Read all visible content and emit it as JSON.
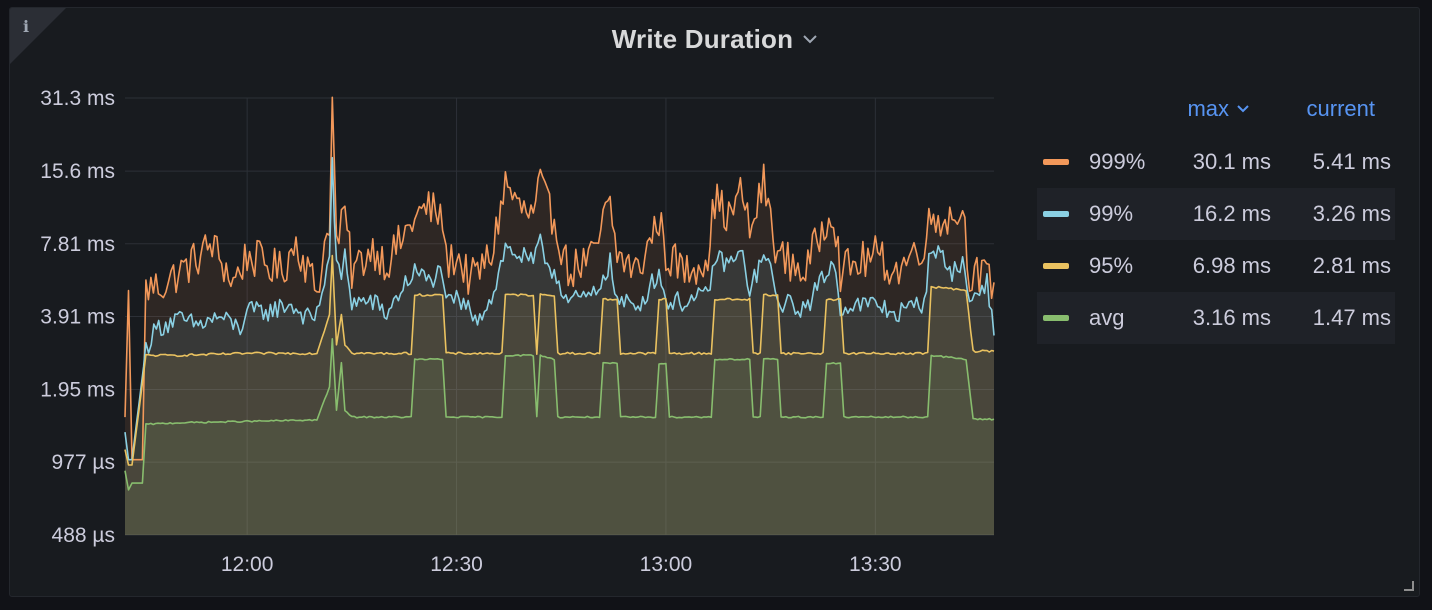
{
  "panel": {
    "title": "Write Duration",
    "info_icon": "i"
  },
  "legend": {
    "headers": {
      "max": "max",
      "current": "current"
    },
    "series": [
      {
        "name": "999%",
        "color": "#f2985a",
        "max": "30.1 ms",
        "current": "5.41 ms"
      },
      {
        "name": "99%",
        "color": "#8ad0e3",
        "max": "16.2 ms",
        "current": "3.26 ms"
      },
      {
        "name": "95%",
        "color": "#eac260",
        "max": "6.98 ms",
        "current": "2.81 ms"
      },
      {
        "name": "avg",
        "color": "#88bd6e",
        "max": "3.16 ms",
        "current": "1.47 ms"
      }
    ]
  },
  "chart_data": {
    "type": "area",
    "scale": "log2",
    "grid": true,
    "legend_position": "right",
    "y_ticks_ms": [
      31.3,
      15.6,
      7.81,
      3.91,
      1.95,
      0.977,
      0.488
    ],
    "y_tick_labels": [
      "31.3 ms",
      "15.6 ms",
      "7.81 ms",
      "3.91 ms",
      "1.95 ms",
      "977 µs",
      "488 µs"
    ],
    "ylim_ms": [
      0.488,
      31.3
    ],
    "x_ticks": [
      "12:00",
      "12:30",
      "13:00",
      "13:30"
    ],
    "x_tick_minutes": [
      0,
      30,
      60,
      90
    ],
    "xlim_minutes": [
      -17.5,
      107
    ],
    "bursts": [
      {
        "start": 13,
        "end": 15
      },
      {
        "start": 24,
        "end": 28
      },
      {
        "start": 37,
        "end": 41
      },
      {
        "start": 42,
        "end": 44
      },
      {
        "start": 51,
        "end": 53
      },
      {
        "start": 59,
        "end": 60
      },
      {
        "start": 67,
        "end": 72
      },
      {
        "start": 74,
        "end": 76
      },
      {
        "start": 83,
        "end": 85
      },
      {
        "start": 98,
        "end": 103
      }
    ],
    "series": [
      {
        "name": "999%",
        "values": [
          [
            -17.5,
            1.5
          ],
          [
            -17,
            5.0
          ],
          [
            -16.5,
            1.0
          ],
          [
            -15,
            1.0
          ],
          [
            -14.5,
            5.1
          ],
          [
            -12,
            5.3
          ],
          [
            -8,
            6.5
          ],
          [
            -5,
            7.8
          ],
          [
            -2,
            5.4
          ],
          [
            0,
            7.0
          ],
          [
            5,
            6.0
          ],
          [
            7,
            8.0
          ],
          [
            10,
            5.0
          ],
          [
            11.8,
            10
          ],
          [
            12.2,
            30.1
          ],
          [
            12.8,
            8.0
          ],
          [
            13.5,
            9.0
          ],
          [
            14,
            10.5
          ],
          [
            15,
            6.0
          ],
          [
            18,
            7.5
          ],
          [
            20,
            6.5
          ],
          [
            22,
            8.0
          ],
          [
            24,
            10.0
          ],
          [
            26,
            11.0
          ],
          [
            28,
            10.0
          ],
          [
            28.5,
            6.5
          ],
          [
            30,
            7.0
          ],
          [
            32,
            5.5
          ],
          [
            35,
            7.0
          ],
          [
            37,
            14.0
          ],
          [
            39,
            11.0
          ],
          [
            41,
            10.0
          ],
          [
            42,
            14.0
          ],
          [
            43,
            11.0
          ],
          [
            44,
            10.0
          ],
          [
            46,
            6.0
          ],
          [
            50,
            7.0
          ],
          [
            51,
            10.0
          ],
          [
            52,
            11.0
          ],
          [
            53,
            7.0
          ],
          [
            56,
            6.0
          ],
          [
            59,
            10.0
          ],
          [
            60,
            7.0
          ],
          [
            63,
            6.0
          ],
          [
            66,
            7.0
          ],
          [
            67,
            12.0
          ],
          [
            69,
            10.0
          ],
          [
            71,
            13.0
          ],
          [
            72,
            8.5
          ],
          [
            74,
            14.0
          ],
          [
            75,
            10.0
          ],
          [
            76,
            7.0
          ],
          [
            80,
            6.0
          ],
          [
            83,
            10.0
          ],
          [
            84,
            11.0
          ],
          [
            85,
            6.0
          ],
          [
            90,
            7.0
          ],
          [
            93,
            6.0
          ],
          [
            97,
            8.0
          ],
          [
            98,
            10.0
          ],
          [
            101,
            10.0
          ],
          [
            102.5,
            11.0
          ],
          [
            103.5,
            6.0
          ],
          [
            107,
            5.41
          ]
        ]
      },
      {
        "name": "99%",
        "values": [
          [
            -17.5,
            1.3
          ],
          [
            -17,
            1.0
          ],
          [
            -16.5,
            1.0
          ],
          [
            -14.5,
            2.9
          ],
          [
            -13,
            3.5
          ],
          [
            -10,
            3.8
          ],
          [
            -7,
            3.6
          ],
          [
            -4,
            3.9
          ],
          [
            -1,
            3.5
          ],
          [
            0,
            4.1
          ],
          [
            3,
            4.1
          ],
          [
            6,
            4.4
          ],
          [
            9,
            3.8
          ],
          [
            10,
            4.0
          ],
          [
            11.8,
            7.0
          ],
          [
            12.2,
            16.2
          ],
          [
            12.8,
            6.5
          ],
          [
            13.5,
            5.5
          ],
          [
            14,
            7.0
          ],
          [
            15,
            4.5
          ],
          [
            18,
            4.5
          ],
          [
            20,
            4.0
          ],
          [
            22,
            5.0
          ],
          [
            24,
            6.0
          ],
          [
            26,
            5.5
          ],
          [
            28,
            6.0
          ],
          [
            28.5,
            4.3
          ],
          [
            30,
            4.6
          ],
          [
            33,
            3.9
          ],
          [
            35,
            4.6
          ],
          [
            37,
            7.5
          ],
          [
            39,
            7.0
          ],
          [
            41,
            6.5
          ],
          [
            42,
            7.8
          ],
          [
            43,
            6.5
          ],
          [
            44,
            6.0
          ],
          [
            46,
            4.5
          ],
          [
            50,
            4.8
          ],
          [
            51,
            5.8
          ],
          [
            52,
            6.5
          ],
          [
            53,
            4.5
          ],
          [
            56,
            4.3
          ],
          [
            59,
            6.0
          ],
          [
            60,
            4.5
          ],
          [
            63,
            4.5
          ],
          [
            66,
            4.8
          ],
          [
            67,
            6.8
          ],
          [
            69,
            6.5
          ],
          [
            71,
            7.0
          ],
          [
            72,
            5.0
          ],
          [
            74,
            7.0
          ],
          [
            75,
            6.0
          ],
          [
            76,
            4.5
          ],
          [
            80,
            4.2
          ],
          [
            83,
            6.0
          ],
          [
            84,
            6.5
          ],
          [
            85,
            4.3
          ],
          [
            90,
            4.4
          ],
          [
            93,
            4.0
          ],
          [
            97,
            4.5
          ],
          [
            98,
            7.8
          ],
          [
            101,
            6.0
          ],
          [
            102.5,
            6.5
          ],
          [
            103.5,
            4.5
          ],
          [
            106,
            5.5
          ],
          [
            107,
            3.26
          ]
        ]
      },
      {
        "name": "95%",
        "values": [
          [
            -17.5,
            1.1
          ],
          [
            -17,
            0.95
          ],
          [
            -16.5,
            0.95
          ],
          [
            -14.5,
            2.7
          ],
          [
            -10,
            2.7
          ],
          [
            0,
            2.75
          ],
          [
            10,
            2.75
          ],
          [
            11.8,
            4.0
          ],
          [
            12.2,
            6.98
          ],
          [
            12.8,
            3.0
          ],
          [
            13.5,
            4.0
          ],
          [
            14,
            3.0
          ],
          [
            15,
            2.75
          ],
          [
            23.5,
            2.75
          ],
          [
            24,
            4.8
          ],
          [
            28,
            4.8
          ],
          [
            28.5,
            2.75
          ],
          [
            36.5,
            2.75
          ],
          [
            37,
            4.8
          ],
          [
            41,
            4.8
          ],
          [
            41.5,
            2.75
          ],
          [
            42,
            4.8
          ],
          [
            44,
            4.8
          ],
          [
            44.5,
            2.75
          ],
          [
            50.5,
            2.75
          ],
          [
            51,
            4.6
          ],
          [
            53,
            4.6
          ],
          [
            53.5,
            2.75
          ],
          [
            58.5,
            2.75
          ],
          [
            59,
            4.6
          ],
          [
            60,
            4.6
          ],
          [
            60.5,
            2.75
          ],
          [
            66.5,
            2.75
          ],
          [
            67,
            4.6
          ],
          [
            72,
            4.6
          ],
          [
            72.5,
            2.75
          ],
          [
            73.5,
            2.75
          ],
          [
            74,
            4.8
          ],
          [
            76,
            4.8
          ],
          [
            76.5,
            2.75
          ],
          [
            82.5,
            2.75
          ],
          [
            83,
            4.6
          ],
          [
            85,
            4.6
          ],
          [
            85.5,
            2.75
          ],
          [
            97.5,
            2.75
          ],
          [
            98,
            5.2
          ],
          [
            103,
            5.0
          ],
          [
            104,
            2.81
          ],
          [
            107,
            2.81
          ]
        ]
      },
      {
        "name": "avg",
        "values": [
          [
            -17.5,
            0.9
          ],
          [
            -17,
            0.75
          ],
          [
            -16.5,
            0.8
          ],
          [
            -15,
            0.8
          ],
          [
            -14.5,
            1.4
          ],
          [
            -10,
            1.42
          ],
          [
            0,
            1.44
          ],
          [
            10,
            1.46
          ],
          [
            11.8,
            2.0
          ],
          [
            12.2,
            3.16
          ],
          [
            12.8,
            1.6
          ],
          [
            13.5,
            2.5
          ],
          [
            14,
            1.6
          ],
          [
            15,
            1.5
          ],
          [
            23.5,
            1.5
          ],
          [
            24,
            2.6
          ],
          [
            28,
            2.6
          ],
          [
            28.5,
            1.5
          ],
          [
            36.5,
            1.5
          ],
          [
            37,
            2.7
          ],
          [
            41,
            2.7
          ],
          [
            41.5,
            1.5
          ],
          [
            42,
            2.7
          ],
          [
            44,
            2.6
          ],
          [
            44.5,
            1.5
          ],
          [
            50.5,
            1.5
          ],
          [
            51,
            2.5
          ],
          [
            53,
            2.5
          ],
          [
            53.5,
            1.5
          ],
          [
            58.5,
            1.5
          ],
          [
            59,
            2.5
          ],
          [
            60,
            2.5
          ],
          [
            60.5,
            1.5
          ],
          [
            66.5,
            1.5
          ],
          [
            67,
            2.6
          ],
          [
            72,
            2.6
          ],
          [
            72.5,
            1.5
          ],
          [
            73.5,
            1.5
          ],
          [
            74,
            2.6
          ],
          [
            76,
            2.6
          ],
          [
            76.5,
            1.5
          ],
          [
            82.5,
            1.5
          ],
          [
            83,
            2.5
          ],
          [
            85,
            2.5
          ],
          [
            85.5,
            1.5
          ],
          [
            97.5,
            1.5
          ],
          [
            98,
            2.7
          ],
          [
            103,
            2.6
          ],
          [
            104,
            1.47
          ],
          [
            107,
            1.47
          ]
        ]
      }
    ]
  }
}
